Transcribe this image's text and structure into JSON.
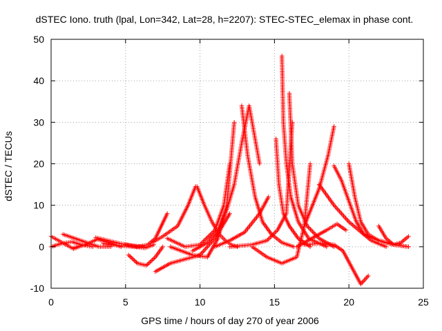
{
  "chart_data": {
    "type": "scatter",
    "title": "dSTEC Iono. truth (lpal, Lon=342, Lat=28, h=2207): STEC-STEC_elemax in phase cont.",
    "xlabel": "GPS time / hours of day 270 of year 2006",
    "ylabel": "dSTEC  / TECUs",
    "xlim": [
      0,
      25
    ],
    "ylim": [
      -10,
      50
    ],
    "x_ticks": [
      0,
      5,
      10,
      15,
      20,
      25
    ],
    "y_ticks": [
      -10,
      0,
      10,
      20,
      30,
      40,
      50
    ],
    "x_tick_labels": [
      "0",
      "5",
      "10",
      "15",
      "20",
      "25"
    ],
    "y_tick_labels": [
      "-10",
      "0",
      "10",
      "20",
      "30",
      "40",
      "50"
    ],
    "grid": true,
    "legend": "none",
    "marker": "plus",
    "color": "#ff0000",
    "series": [
      {
        "x": [
          0.0,
          0.5,
          1.0,
          1.5,
          2.0
        ],
        "y": [
          2.5,
          1.5,
          0.5,
          -0.5,
          0.2
        ]
      },
      {
        "x": [
          0.0,
          0.7,
          1.4,
          2.1,
          2.8
        ],
        "y": [
          0.0,
          0.8,
          1.2,
          0.4,
          0.0
        ]
      },
      {
        "x": [
          0.8,
          1.6,
          2.4,
          3.2,
          4.0
        ],
        "y": [
          3.0,
          2.0,
          1.0,
          0.0,
          0.0
        ]
      },
      {
        "x": [
          1.5,
          2.3,
          3.1,
          3.9,
          4.7
        ],
        "y": [
          -0.3,
          0.5,
          1.8,
          1.0,
          0.0
        ]
      },
      {
        "x": [
          3.0,
          3.8,
          4.6,
          5.4,
          6.2
        ],
        "y": [
          2.2,
          1.5,
          0.8,
          0.3,
          0.0
        ]
      },
      {
        "x": [
          3.5,
          4.5,
          5.5,
          6.3,
          6.9
        ],
        "y": [
          0.8,
          0.3,
          0.0,
          -0.3,
          0.5
        ]
      },
      {
        "x": [
          5.0,
          5.8,
          6.5,
          7.0,
          7.4,
          7.8
        ],
        "y": [
          0.5,
          0.0,
          0.5,
          2.0,
          5.0,
          8.0
        ]
      },
      {
        "x": [
          5.2,
          5.8,
          6.4,
          7.0,
          7.5
        ],
        "y": [
          -2.0,
          -4.0,
          -4.5,
          -2.5,
          0.0
        ]
      },
      {
        "x": [
          6.8,
          7.5,
          8.5,
          9.2,
          9.7
        ],
        "y": [
          1.0,
          2.5,
          5.0,
          10.0,
          14.5
        ]
      },
      {
        "x": [
          7.0,
          8.0,
          9.0,
          10.0,
          11.0,
          12.0
        ],
        "y": [
          -6.0,
          -4.0,
          -3.0,
          -2.0,
          2.0,
          8.0
        ]
      },
      {
        "x": [
          9.8,
          10.3,
          10.8,
          11.3,
          11.7,
          12.1,
          12.5
        ],
        "y": [
          14.5,
          10.0,
          6.0,
          3.0,
          1.5,
          0.5,
          0.0
        ]
      },
      {
        "x": [
          7.8,
          9.0,
          10.0,
          11.0,
          11.6,
          12.0
        ],
        "y": [
          2.0,
          0.0,
          0.5,
          4.0,
          10.0,
          20.0
        ]
      },
      {
        "x": [
          8.0,
          9.5,
          10.5,
          11.2,
          11.8,
          12.3
        ],
        "y": [
          0.0,
          -2.0,
          -2.5,
          2.0,
          10.0,
          30.0
        ]
      },
      {
        "x": [
          9.5,
          10.5,
          11.2,
          11.8,
          12.3,
          12.8,
          13.3,
          14.0
        ],
        "y": [
          -1.0,
          1.0,
          4.0,
          9.0,
          15.0,
          25.0,
          34.0,
          20.0
        ]
      },
      {
        "x": [
          12.8,
          13.2,
          13.7,
          14.2,
          14.8,
          15.5,
          16.3
        ],
        "y": [
          34.0,
          22.0,
          12.0,
          6.0,
          3.0,
          1.0,
          0.0
        ]
      },
      {
        "x": [
          11.0,
          12.0,
          13.0,
          14.0,
          14.6
        ],
        "y": [
          0.0,
          1.5,
          3.5,
          8.0,
          12.0
        ]
      },
      {
        "x": [
          15.1,
          15.3,
          15.6,
          16.0,
          16.6,
          17.4
        ],
        "y": [
          26.0,
          15.0,
          8.0,
          5.0,
          2.0,
          0.0
        ]
      },
      {
        "x": [
          12.0,
          13.5,
          14.5,
          15.2,
          15.8,
          16.2
        ],
        "y": [
          0.0,
          0.5,
          1.5,
          4.0,
          8.0,
          30.0
        ]
      },
      {
        "x": [
          15.5,
          15.6,
          15.8,
          16.1,
          16.6,
          17.3,
          18.5
        ],
        "y": [
          46.0,
          30.0,
          20.0,
          12.0,
          6.0,
          2.0,
          0.0
        ]
      },
      {
        "x": [
          16.0,
          16.2,
          16.6,
          17.2,
          18.0,
          19.0
        ],
        "y": [
          37.0,
          20.0,
          10.0,
          5.0,
          2.0,
          0.0
        ]
      },
      {
        "x": [
          13.5,
          14.5,
          15.5,
          16.5,
          17.0,
          17.4
        ],
        "y": [
          0.0,
          -2.5,
          -4.0,
          -2.5,
          5.0,
          20.0
        ]
      },
      {
        "x": [
          17.0,
          18.0,
          18.6,
          19.0
        ],
        "y": [
          5.0,
          14.0,
          22.0,
          29.0
        ]
      },
      {
        "x": [
          18.0,
          19.0,
          20.0,
          21.0,
          22.0,
          23.0,
          24.0
        ],
        "y": [
          15.0,
          10.0,
          6.0,
          3.0,
          1.5,
          0.5,
          0.0
        ]
      },
      {
        "x": [
          19.0,
          19.5,
          20.0,
          20.5,
          21.0,
          21.5,
          22.5
        ],
        "y": [
          19.5,
          16.0,
          11.0,
          6.0,
          3.0,
          1.5,
          0.0
        ]
      },
      {
        "x": [
          20.0,
          20.4,
          20.8,
          21.3,
          22.0,
          23.0,
          24.0
        ],
        "y": [
          20.0,
          12.0,
          6.0,
          3.0,
          1.5,
          0.5,
          0.0
        ]
      },
      {
        "x": [
          16.5,
          17.5,
          18.5,
          19.2,
          19.8
        ],
        "y": [
          0.0,
          2.0,
          4.0,
          5.5,
          4.0
        ]
      },
      {
        "x": [
          17.0,
          18.0,
          19.0,
          19.6,
          20.2,
          20.8,
          21.3
        ],
        "y": [
          0.5,
          0.8,
          0.5,
          -1.0,
          -5.0,
          -9.0,
          -7.0
        ]
      },
      {
        "x": [
          22.0,
          22.5,
          23.0,
          23.5,
          24.0
        ],
        "y": [
          5.0,
          2.0,
          0.5,
          1.0,
          2.5
        ]
      }
    ]
  }
}
